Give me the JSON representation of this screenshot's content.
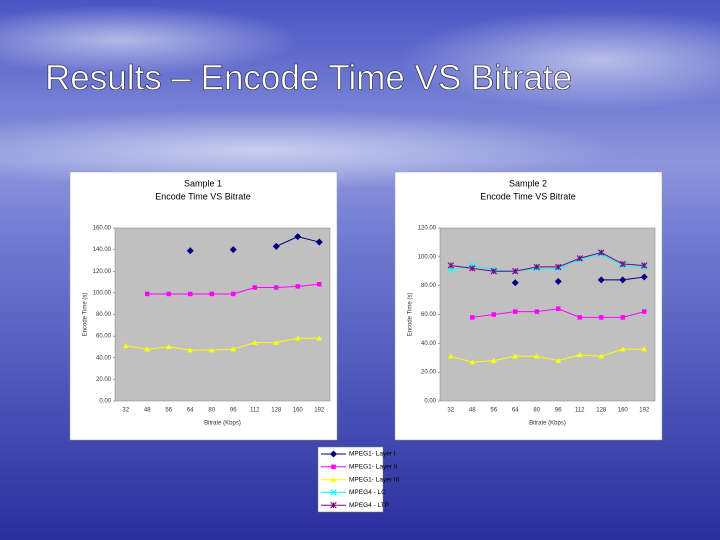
{
  "slide_title": "Results – Encode Time VS Bitrate",
  "chart_data": [
    {
      "type": "line",
      "title": "Sample 1",
      "subtitle": "Encode Time VS Bitrate",
      "x_label": "Bitrate (Kbps)",
      "y_label": "Encode Time (s)",
      "categories": [
        "32",
        "48",
        "56",
        "64",
        "80",
        "96",
        "112",
        "128",
        "160",
        "192"
      ],
      "ylim": [
        0,
        160
      ],
      "yticks": [
        {
          "value": 0,
          "label": "0.00"
        },
        {
          "value": 20,
          "label": "20.00"
        },
        {
          "value": 40,
          "label": "40.00"
        },
        {
          "value": 60,
          "label": "60.00"
        },
        {
          "value": 80,
          "label": "80.00"
        },
        {
          "value": 100,
          "label": "100.00"
        },
        {
          "value": 120,
          "label": "120.00"
        },
        {
          "value": 140,
          "label": "140.00"
        },
        {
          "value": 160,
          "label": "160.00"
        }
      ],
      "grid": false,
      "series": [
        {
          "name": "MPEG1- Layer I",
          "color": "#000080",
          "marker": "diamond",
          "values": [
            null,
            null,
            null,
            139,
            null,
            140,
            null,
            143,
            152,
            147
          ]
        },
        {
          "name": "MPEG1- Layer II",
          "color": "#ff00ff",
          "marker": "square",
          "values": [
            null,
            99,
            99,
            99,
            99,
            99,
            105,
            105,
            106,
            108
          ]
        },
        {
          "name": "MPEG1- Layer III",
          "color": "#ffff00",
          "marker": "triangle",
          "values": [
            51,
            48,
            50,
            47,
            47,
            48,
            54,
            54,
            58,
            58
          ]
        }
      ]
    },
    {
      "type": "line",
      "title": "Sample 2",
      "subtitle": "Encode Time VS Bitrate",
      "x_label": "Bitrate (Kbps)",
      "y_label": "Encode Time (s)",
      "categories": [
        "32",
        "48",
        "56",
        "64",
        "80",
        "96",
        "112",
        "128",
        "160",
        "192"
      ],
      "ylim": [
        0,
        120
      ],
      "yticks": [
        {
          "value": 0,
          "label": "0.00"
        },
        {
          "value": 20,
          "label": "20.00"
        },
        {
          "value": 40,
          "label": "40.00"
        },
        {
          "value": 60,
          "label": "60.00"
        },
        {
          "value": 80,
          "label": "80.00"
        },
        {
          "value": 100,
          "label": "100.00"
        },
        {
          "value": 120,
          "label": "120.00"
        }
      ],
      "grid": false,
      "series": [
        {
          "name": "MPEG1- Layer I",
          "color": "#000080",
          "marker": "diamond",
          "values": [
            null,
            null,
            null,
            82,
            null,
            83,
            null,
            84,
            84,
            86
          ]
        },
        {
          "name": "MPEG1- Layer II",
          "color": "#ff00ff",
          "marker": "square",
          "values": [
            null,
            58,
            60,
            62,
            62,
            64,
            58,
            58,
            58,
            62
          ]
        },
        {
          "name": "MPEG1- Layer III",
          "color": "#ffff00",
          "marker": "triangle",
          "values": [
            31,
            27,
            28,
            31,
            31,
            28,
            32,
            31,
            36,
            36
          ]
        },
        {
          "name": "MPEG4 - LC",
          "color": "#00ffff",
          "marker": "x",
          "values": [
            91,
            94,
            91,
            90,
            92,
            92,
            98,
            102,
            94,
            93
          ]
        },
        {
          "name": "MPEG4 - LTP",
          "color": "#800080",
          "marker": "star",
          "values": [
            94,
            92,
            90,
            90,
            93,
            93,
            99,
            103,
            95,
            94
          ]
        }
      ]
    }
  ]
}
